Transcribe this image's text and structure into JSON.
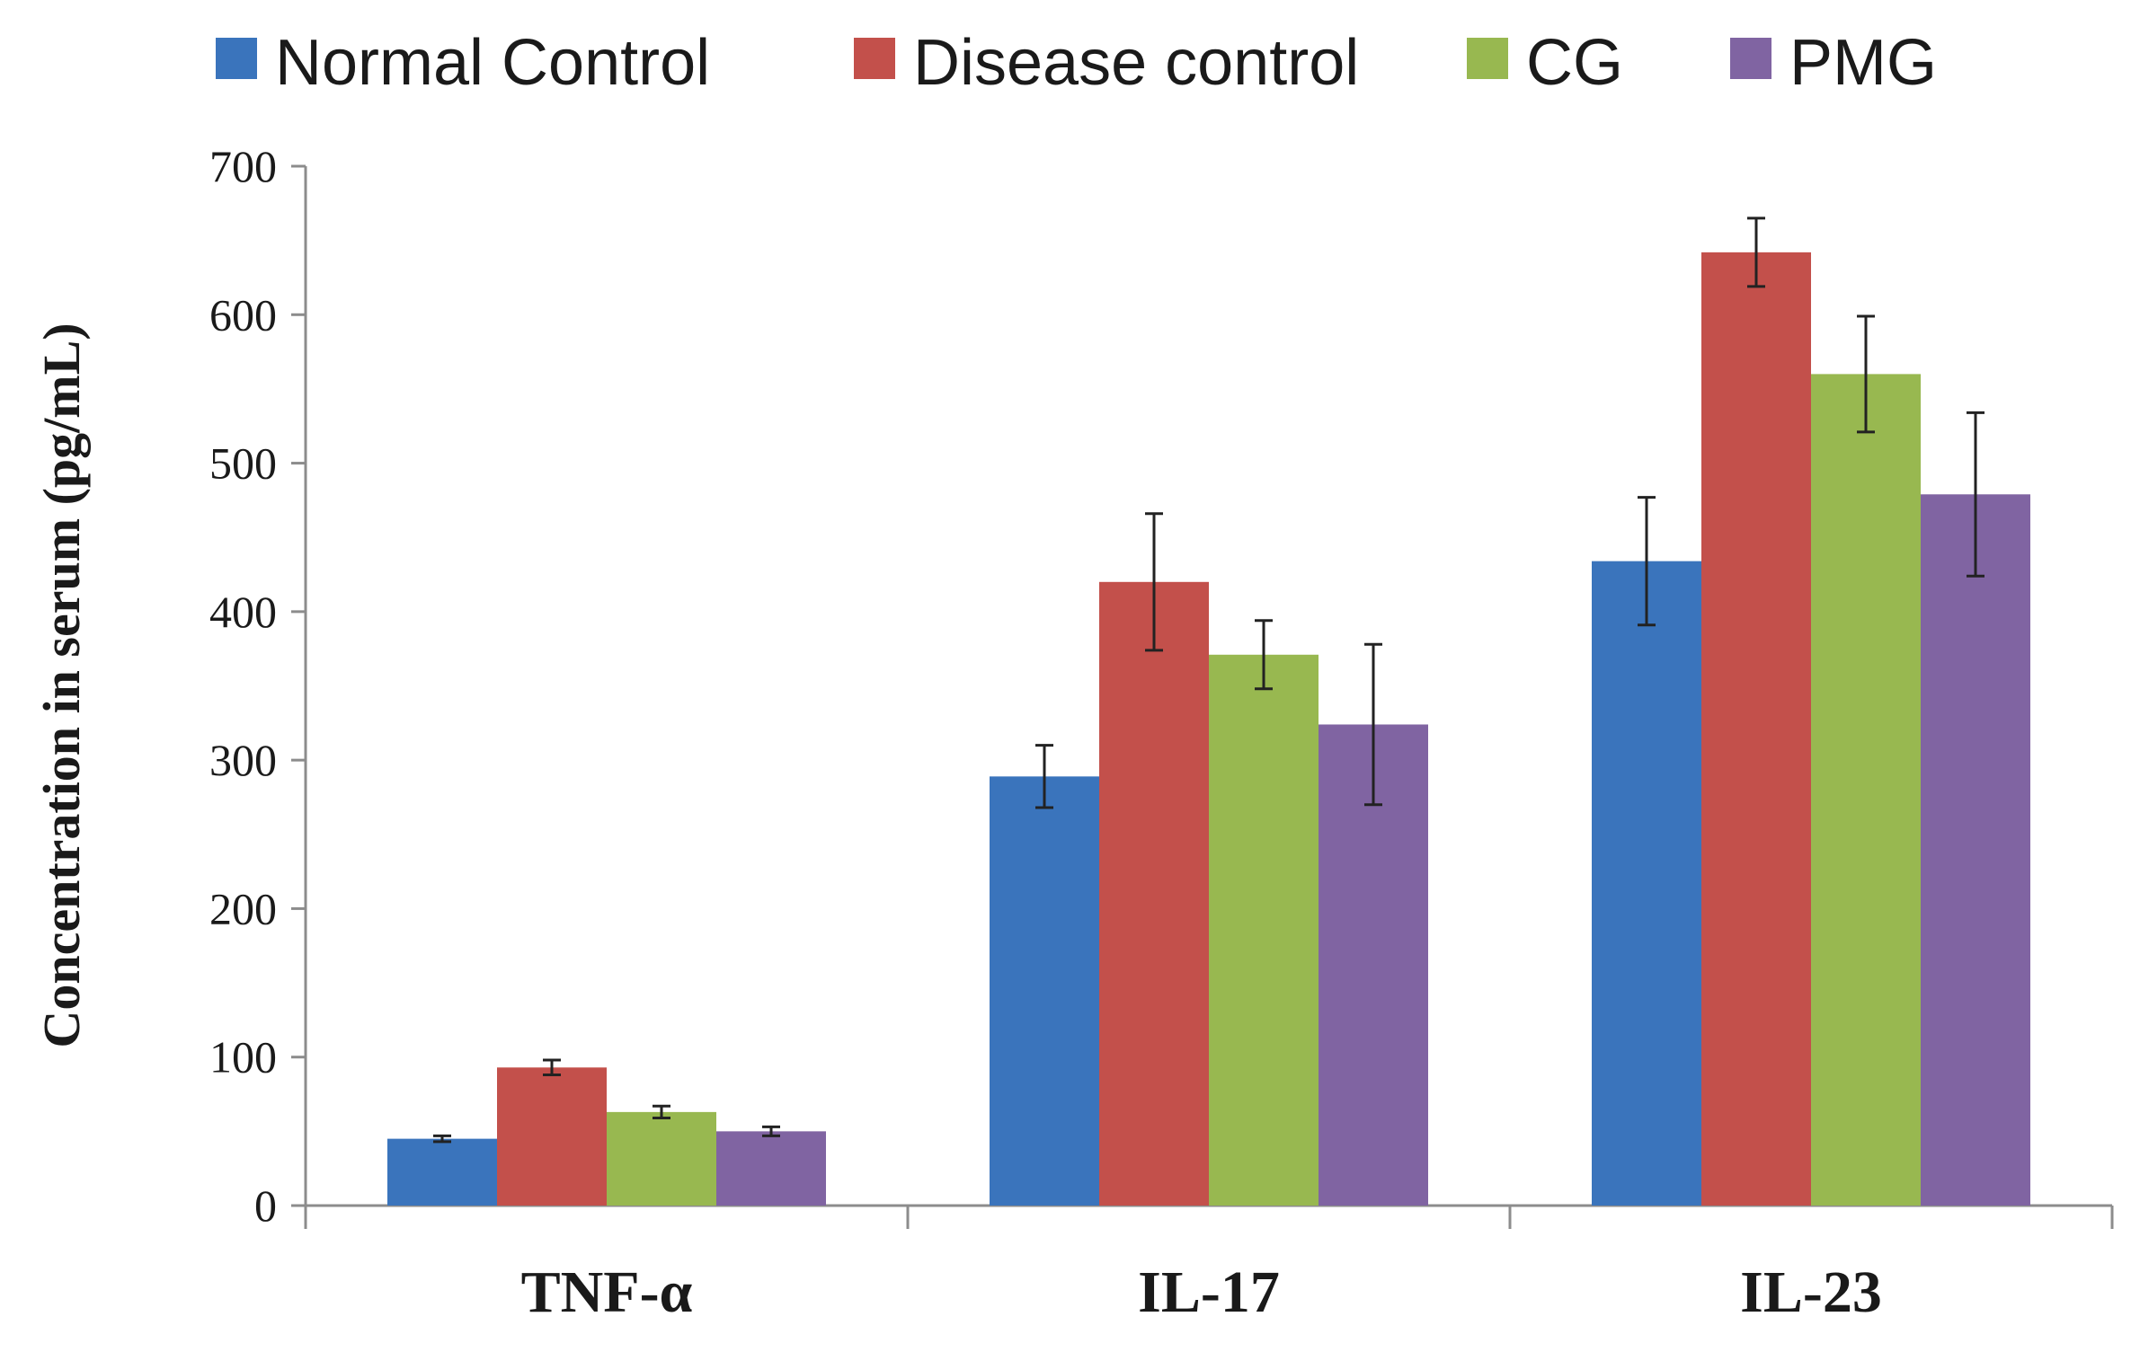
{
  "chart_data": {
    "type": "bar",
    "categories": [
      "TNF-α",
      "IL-17",
      "IL-23"
    ],
    "series": [
      {
        "name": "Normal Control",
        "color": "#3a74bc",
        "values": [
          45,
          289,
          434
        ],
        "errors": [
          2,
          21,
          43
        ]
      },
      {
        "name": "Disease control",
        "color": "#c3504b",
        "values": [
          93,
          420,
          642
        ],
        "errors": [
          5,
          46,
          23
        ]
      },
      {
        "name": "CG",
        "color": "#98b850",
        "values": [
          63,
          371,
          560
        ],
        "errors": [
          4,
          23,
          39
        ]
      },
      {
        "name": "PMG",
        "color": "#8064a2",
        "values": [
          50,
          324,
          479
        ],
        "errors": [
          3,
          54,
          55
        ]
      }
    ],
    "title": "",
    "xlabel": "",
    "ylabel": "Concentration in serum  (pg/mL)",
    "ylim": [
      0,
      700
    ],
    "yticks": [
      0,
      100,
      200,
      300,
      400,
      500,
      600,
      700
    ],
    "grid": false,
    "legend": "top",
    "error_bars": true
  }
}
